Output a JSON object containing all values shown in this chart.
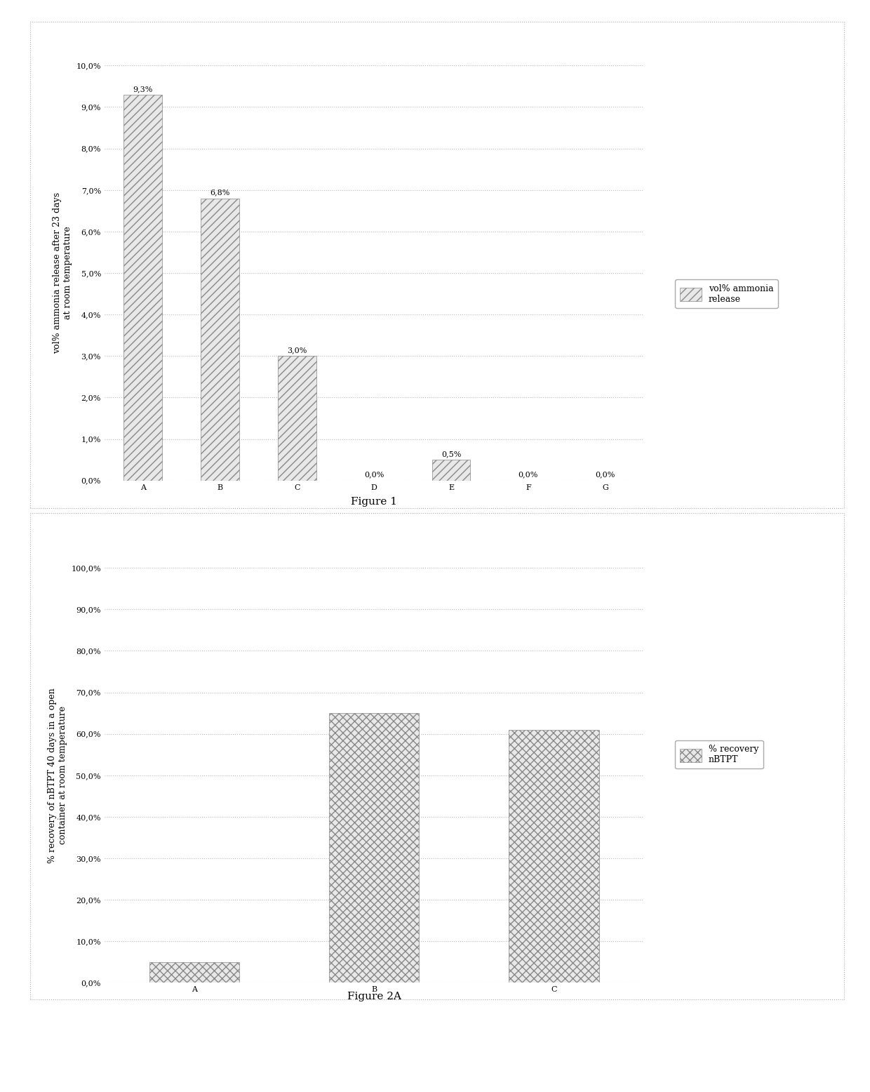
{
  "fig1": {
    "categories": [
      "A",
      "B",
      "C",
      "D",
      "E",
      "F",
      "G"
    ],
    "values": [
      9.3,
      6.8,
      3.0,
      0.0,
      0.5,
      0.0,
      0.0
    ],
    "labels": [
      "9,3%",
      "6,8%",
      "3,0%",
      "0,0%",
      "0,5%",
      "0,0%",
      "0,0%"
    ],
    "ylabel": "vol% ammonia release after 23 days\nat room temperature",
    "ylim": [
      0,
      10.0
    ],
    "yticks": [
      0.0,
      1.0,
      2.0,
      3.0,
      4.0,
      5.0,
      6.0,
      7.0,
      8.0,
      9.0,
      10.0
    ],
    "ytick_labels": [
      "0,0%",
      "1,0%",
      "2,0%",
      "3,0%",
      "4,0%",
      "5,0%",
      "6,0%",
      "7,0%",
      "8,0%",
      "9,0%",
      "10,0%"
    ],
    "legend_label": "vol% ammonia\nrelease",
    "figure_label": "Figure 1",
    "hatch": "///",
    "bar_color": "#e8e8e8",
    "bar_edge_color": "#888888"
  },
  "fig2a": {
    "categories": [
      "A",
      "B",
      "C"
    ],
    "values": [
      5.0,
      65.0,
      61.0
    ],
    "ylabel": "% recovery of nBTPT 40 days in a open\ncontainer at room temperature",
    "ylim": [
      0,
      100.0
    ],
    "yticks": [
      0.0,
      10.0,
      20.0,
      30.0,
      40.0,
      50.0,
      60.0,
      70.0,
      80.0,
      90.0,
      100.0
    ],
    "ytick_labels": [
      "0,0%",
      "10,0%",
      "20,0%",
      "30,0%",
      "40,0%",
      "50,0%",
      "60,0%",
      "70,0%",
      "80,0%",
      "90,0%",
      "100,0%"
    ],
    "legend_label": "% recovery\nnBTPT",
    "figure_label": "Figure 2A",
    "hatch": "xxx",
    "bar_color": "#e8e8e8",
    "bar_edge_color": "#888888"
  },
  "background_color": "#ffffff",
  "outer_border_color": "#aaaaaa",
  "grid_color": "#bbbbbb",
  "font_size": 9,
  "label_font_size": 8,
  "tick_font_size": 8,
  "figure_label_font_size": 11
}
